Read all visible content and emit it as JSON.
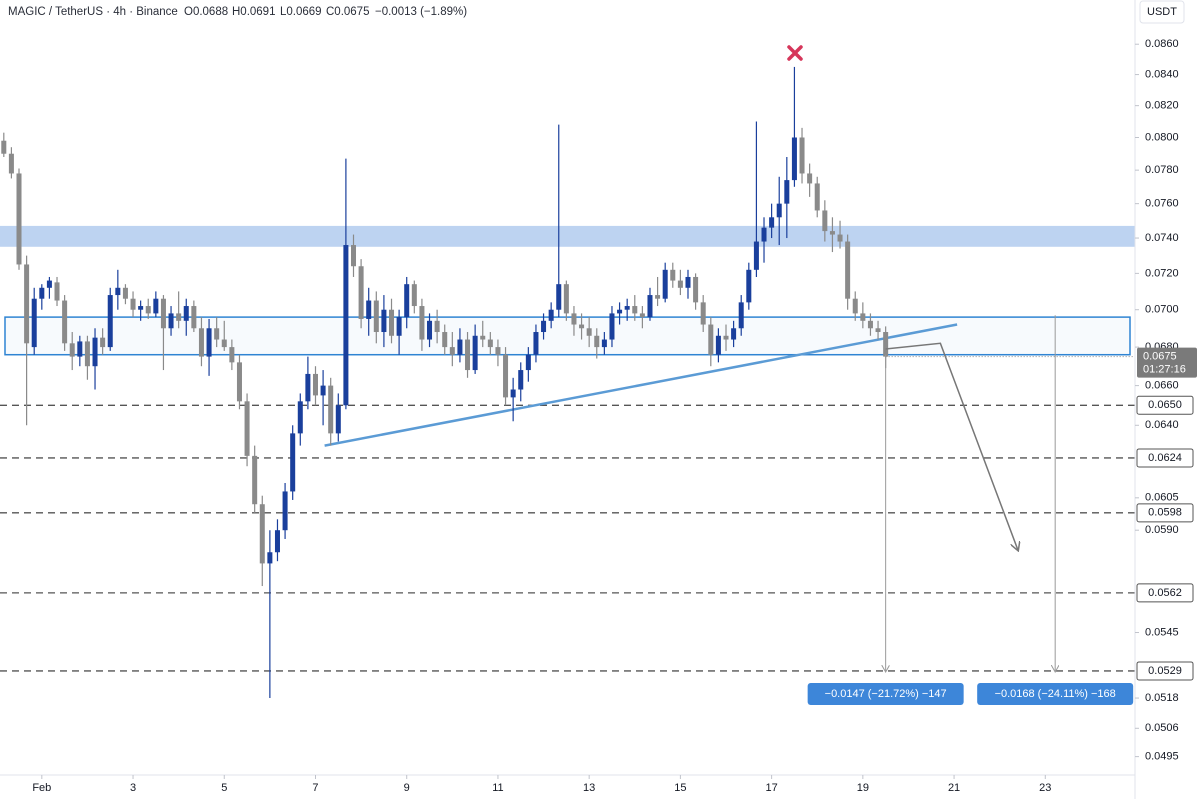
{
  "chart_data": {
    "type": "candlestick",
    "header": {
      "symbol": "MAGIC / TetherUS · 4h · Binance",
      "open": "O0.0688",
      "high": "H0.0691",
      "low": "L0.0669",
      "close": "C0.0675",
      "change": "−0.0013 (−1.89%)"
    },
    "currency": "USDT",
    "log_scale": true,
    "grid": false,
    "up_color": "#1a3f9c",
    "down_color": "#8a8a8a",
    "xlim": [
      -0.5,
      148.8
    ],
    "ylim": [
      0.089,
      0.0488
    ],
    "xticks": [
      {
        "value": 5,
        "label": "Feb"
      },
      {
        "value": 17,
        "label": "3"
      },
      {
        "value": 29,
        "label": "5"
      },
      {
        "value": 41,
        "label": "7"
      },
      {
        "value": 53,
        "label": "9"
      },
      {
        "value": 65,
        "label": "11"
      },
      {
        "value": 77,
        "label": "13"
      },
      {
        "value": 89,
        "label": "15"
      },
      {
        "value": 101,
        "label": "17"
      },
      {
        "value": 113,
        "label": "19"
      },
      {
        "value": 125,
        "label": "21"
      },
      {
        "value": 137,
        "label": "23"
      }
    ],
    "yticks": [
      {
        "value": 0.086,
        "label": "0.0860"
      },
      {
        "value": 0.084,
        "label": "0.0840"
      },
      {
        "value": 0.082,
        "label": "0.0820"
      },
      {
        "value": 0.08,
        "label": "0.0800"
      },
      {
        "value": 0.078,
        "label": "0.0780"
      },
      {
        "value": 0.076,
        "label": "0.0760"
      },
      {
        "value": 0.074,
        "label": "0.0740"
      },
      {
        "value": 0.072,
        "label": "0.0720"
      },
      {
        "value": 0.07,
        "label": "0.0700"
      },
      {
        "value": 0.068,
        "label": "0.0680"
      },
      {
        "value": 0.066,
        "label": "0.0660"
      },
      {
        "value": 0.064,
        "label": "0.0640"
      },
      {
        "value": 0.0605,
        "label": "0.0605"
      },
      {
        "value": 0.059,
        "label": "0.0590"
      },
      {
        "value": 0.0545,
        "label": "0.0545"
      },
      {
        "value": 0.0518,
        "label": "0.0518"
      },
      {
        "value": 0.0506,
        "label": "0.0506"
      },
      {
        "value": 0.0495,
        "label": "0.0495"
      }
    ],
    "candles": [
      [
        0.0798,
        0.0803,
        0.0788,
        0.079
      ],
      [
        0.079,
        0.0794,
        0.0775,
        0.0778
      ],
      [
        0.0778,
        0.0781,
        0.0722,
        0.0725
      ],
      [
        0.0725,
        0.073,
        0.064,
        0.0682
      ],
      [
        0.068,
        0.0712,
        0.0676,
        0.0706
      ],
      [
        0.0706,
        0.0714,
        0.07,
        0.0712
      ],
      [
        0.0712,
        0.0718,
        0.0706,
        0.0716
      ],
      [
        0.0715,
        0.0718,
        0.0702,
        0.0705
      ],
      [
        0.0705,
        0.0708,
        0.0678,
        0.0682
      ],
      [
        0.0682,
        0.0688,
        0.0668,
        0.0675
      ],
      [
        0.0675,
        0.0686,
        0.067,
        0.0683
      ],
      [
        0.0683,
        0.0686,
        0.0663,
        0.067
      ],
      [
        0.067,
        0.069,
        0.0658,
        0.0685
      ],
      [
        0.0685,
        0.069,
        0.0676,
        0.068
      ],
      [
        0.068,
        0.0712,
        0.0678,
        0.0708
      ],
      [
        0.0708,
        0.0722,
        0.07,
        0.0712
      ],
      [
        0.0712,
        0.0714,
        0.0703,
        0.0706
      ],
      [
        0.0706,
        0.071,
        0.0696,
        0.07
      ],
      [
        0.07,
        0.0705,
        0.0694,
        0.0702
      ],
      [
        0.0702,
        0.0706,
        0.0695,
        0.0698
      ],
      [
        0.0698,
        0.071,
        0.0696,
        0.0706
      ],
      [
        0.0706,
        0.0708,
        0.0668,
        0.069
      ],
      [
        0.069,
        0.0702,
        0.0686,
        0.0698
      ],
      [
        0.0698,
        0.071,
        0.069,
        0.0694
      ],
      [
        0.0694,
        0.0706,
        0.0686,
        0.0702
      ],
      [
        0.0702,
        0.0705,
        0.0688,
        0.069
      ],
      [
        0.069,
        0.0696,
        0.067,
        0.0675
      ],
      [
        0.0675,
        0.0695,
        0.0665,
        0.069
      ],
      [
        0.069,
        0.0696,
        0.068,
        0.0684
      ],
      [
        0.0684,
        0.0694,
        0.0678,
        0.068
      ],
      [
        0.068,
        0.0684,
        0.0668,
        0.0672
      ],
      [
        0.0672,
        0.0676,
        0.0648,
        0.0652
      ],
      [
        0.0652,
        0.0656,
        0.062,
        0.0625
      ],
      [
        0.0625,
        0.063,
        0.0598,
        0.0602
      ],
      [
        0.0602,
        0.0606,
        0.0565,
        0.0575
      ],
      [
        0.0575,
        0.059,
        0.0518,
        0.058
      ],
      [
        0.058,
        0.0595,
        0.0576,
        0.059
      ],
      [
        0.059,
        0.0612,
        0.0586,
        0.0608
      ],
      [
        0.0608,
        0.064,
        0.0604,
        0.0636
      ],
      [
        0.0636,
        0.0656,
        0.063,
        0.0652
      ],
      [
        0.0652,
        0.0675,
        0.0648,
        0.0666
      ],
      [
        0.0666,
        0.067,
        0.065,
        0.0655
      ],
      [
        0.0655,
        0.0668,
        0.064,
        0.066
      ],
      [
        0.066,
        0.0664,
        0.063,
        0.0636
      ],
      [
        0.0636,
        0.0656,
        0.0632,
        0.065
      ],
      [
        0.065,
        0.0787,
        0.0648,
        0.0736
      ],
      [
        0.0736,
        0.0742,
        0.0718,
        0.0724
      ],
      [
        0.0724,
        0.0728,
        0.069,
        0.0695
      ],
      [
        0.0695,
        0.0712,
        0.0686,
        0.0705
      ],
      [
        0.0705,
        0.071,
        0.0682,
        0.0688
      ],
      [
        0.0688,
        0.0708,
        0.068,
        0.07
      ],
      [
        0.07,
        0.0706,
        0.0682,
        0.0686
      ],
      [
        0.0686,
        0.07,
        0.0676,
        0.0696
      ],
      [
        0.0696,
        0.0718,
        0.069,
        0.0714
      ],
      [
        0.0714,
        0.0716,
        0.0698,
        0.0702
      ],
      [
        0.0702,
        0.0706,
        0.0678,
        0.0684
      ],
      [
        0.0684,
        0.0698,
        0.068,
        0.0694
      ],
      [
        0.0694,
        0.07,
        0.0682,
        0.0688
      ],
      [
        0.0688,
        0.0692,
        0.0676,
        0.068
      ],
      [
        0.068,
        0.0688,
        0.067,
        0.0676
      ],
      [
        0.0676,
        0.069,
        0.0672,
        0.0684
      ],
      [
        0.0684,
        0.0688,
        0.0664,
        0.0668
      ],
      [
        0.0668,
        0.0692,
        0.0666,
        0.0686
      ],
      [
        0.0686,
        0.0694,
        0.068,
        0.0684
      ],
      [
        0.0684,
        0.0688,
        0.0676,
        0.068
      ],
      [
        0.068,
        0.0684,
        0.067,
        0.0676
      ],
      [
        0.0676,
        0.068,
        0.065,
        0.0654
      ],
      [
        0.0654,
        0.0664,
        0.0642,
        0.0658
      ],
      [
        0.0658,
        0.0672,
        0.0652,
        0.0668
      ],
      [
        0.0668,
        0.068,
        0.0662,
        0.0676
      ],
      [
        0.0676,
        0.0692,
        0.0672,
        0.0688
      ],
      [
        0.0688,
        0.0698,
        0.0684,
        0.0694
      ],
      [
        0.0694,
        0.0704,
        0.069,
        0.07
      ],
      [
        0.07,
        0.0808,
        0.0696,
        0.0714
      ],
      [
        0.0714,
        0.0716,
        0.0694,
        0.0698
      ],
      [
        0.0698,
        0.0702,
        0.0686,
        0.0692
      ],
      [
        0.0692,
        0.0698,
        0.0684,
        0.069
      ],
      [
        0.069,
        0.0696,
        0.068,
        0.0686
      ],
      [
        0.0686,
        0.069,
        0.0674,
        0.068
      ],
      [
        0.068,
        0.0688,
        0.0676,
        0.0684
      ],
      [
        0.0684,
        0.0702,
        0.068,
        0.0698
      ],
      [
        0.0698,
        0.0704,
        0.0692,
        0.07
      ],
      [
        0.07,
        0.0706,
        0.0694,
        0.0702
      ],
      [
        0.0702,
        0.0708,
        0.0694,
        0.0698
      ],
      [
        0.0698,
        0.0702,
        0.069,
        0.0696
      ],
      [
        0.0696,
        0.0712,
        0.0694,
        0.0708
      ],
      [
        0.0708,
        0.0718,
        0.0702,
        0.0706
      ],
      [
        0.0706,
        0.0726,
        0.0704,
        0.0722
      ],
      [
        0.0722,
        0.0726,
        0.0712,
        0.0716
      ],
      [
        0.0716,
        0.0722,
        0.0708,
        0.0712
      ],
      [
        0.0712,
        0.0722,
        0.0706,
        0.0718
      ],
      [
        0.0718,
        0.072,
        0.07,
        0.0704
      ],
      [
        0.0704,
        0.0708,
        0.0688,
        0.0692
      ],
      [
        0.0692,
        0.0696,
        0.067,
        0.0676
      ],
      [
        0.0676,
        0.069,
        0.0672,
        0.0686
      ],
      [
        0.0686,
        0.0692,
        0.0678,
        0.0684
      ],
      [
        0.0684,
        0.0694,
        0.068,
        0.069
      ],
      [
        0.069,
        0.0708,
        0.0686,
        0.0704
      ],
      [
        0.0704,
        0.0726,
        0.07,
        0.0722
      ],
      [
        0.0722,
        0.081,
        0.0718,
        0.0738
      ],
      [
        0.0738,
        0.0752,
        0.0726,
        0.0746
      ],
      [
        0.0746,
        0.076,
        0.074,
        0.0752
      ],
      [
        0.0752,
        0.0776,
        0.0736,
        0.076
      ],
      [
        0.076,
        0.0788,
        0.074,
        0.0774
      ],
      [
        0.0774,
        0.0845,
        0.077,
        0.08
      ],
      [
        0.08,
        0.0806,
        0.0772,
        0.0778
      ],
      [
        0.0778,
        0.0784,
        0.0764,
        0.0772
      ],
      [
        0.0772,
        0.0776,
        0.0752,
        0.0756
      ],
      [
        0.0756,
        0.0762,
        0.0738,
        0.0744
      ],
      [
        0.0744,
        0.0752,
        0.0732,
        0.0742
      ],
      [
        0.0742,
        0.075,
        0.0734,
        0.0738
      ],
      [
        0.0738,
        0.0742,
        0.07,
        0.0706
      ],
      [
        0.0706,
        0.071,
        0.0694,
        0.0698
      ],
      [
        0.0698,
        0.0704,
        0.069,
        0.0694
      ],
      [
        0.0694,
        0.0698,
        0.0686,
        0.069
      ],
      [
        0.069,
        0.0694,
        0.0684,
        0.0688
      ],
      [
        0.0688,
        0.0691,
        0.0669,
        0.0675
      ]
    ],
    "resistance_zone": [
      0.0735,
      0.0747
    ],
    "range_box": [
      0.0676,
      0.0696
    ],
    "trendline": {
      "x": [
        42.2,
        125.4
      ],
      "y": [
        0.063,
        0.0692
      ]
    },
    "projection": {
      "x": [
        116,
        123.2,
        133.4
      ],
      "y": [
        0.0679,
        0.0682,
        0.0581
      ]
    },
    "levels": [
      {
        "value": 0.065,
        "label": "0.0650"
      },
      {
        "value": 0.0624,
        "label": "0.0624"
      },
      {
        "value": 0.0598,
        "label": "0.0598"
      },
      {
        "value": 0.0562,
        "label": "0.0562"
      },
      {
        "value": 0.0529,
        "label": "0.0529"
      }
    ],
    "last_price": {
      "value": 0.0675,
      "label": "0.0675"
    },
    "countdown": "01:27:16",
    "measures": [
      {
        "x": 116,
        "from": 0.0676,
        "to": 0.0529,
        "label": "−0.0147 (−21.72%) −147"
      },
      {
        "x": 138.3,
        "from": 0.0697,
        "to": 0.0529,
        "label": "−0.0168 (−24.11%) −168"
      }
    ]
  }
}
